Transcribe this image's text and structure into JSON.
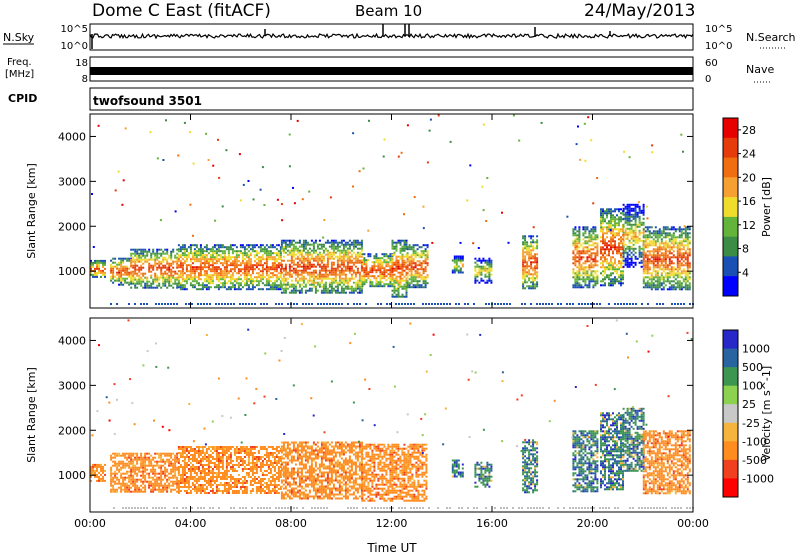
{
  "header": {
    "station": "Dome C East (fitACF)",
    "beam": "Beam 10",
    "date": "24/May/2013"
  },
  "strips": {
    "nsky": {
      "label": "N.Sky",
      "ticks": [
        "10^5",
        "10^0"
      ],
      "right_ticks": [
        "10^5",
        "10^0"
      ],
      "right_label": "N.Search"
    },
    "freq": {
      "label_top": "Freq.",
      "label_bottom": "[MHz]",
      "ticks": [
        "18",
        "8"
      ],
      "right_ticks": [
        "60",
        "0"
      ],
      "right_label": "Nave"
    },
    "cpid": {
      "label": "CPID",
      "value": "twofsound 3501"
    }
  },
  "colors": {
    "power": [
      "#0000ff",
      "#1a50b4",
      "#3c8c46",
      "#64b43c",
      "#f0dc2a",
      "#f5a030",
      "#f06e10",
      "#e63c0c",
      "#e60000"
    ],
    "velocity": [
      "#ff0000",
      "#f04020",
      "#ff8c1e",
      "#f5b43c",
      "#c8c8c8",
      "#8cd250",
      "#3c9650",
      "#2a64a0",
      "#2828c8"
    ],
    "ground": "#bebebe"
  },
  "chart_data": [
    {
      "type": "heatmap",
      "quantity": "Power",
      "xlabel": "",
      "ylabel": "Slant Range [km]",
      "xlim_hours": [
        0,
        24
      ],
      "ylim_km": [
        180,
        4500
      ],
      "x_ticks": [
        "00:00",
        "04:00",
        "08:00",
        "12:00",
        "16:00",
        "20:00",
        "00:00"
      ],
      "y_ticks": [
        1000,
        2000,
        3000,
        4000
      ],
      "colorbar": {
        "label": "Power [dB]",
        "ticks": [
          4,
          8,
          12,
          16,
          20,
          24,
          28
        ],
        "range": [
          0,
          30
        ]
      },
      "scatter_regions": [
        {
          "t_start": 0.0,
          "t_end": 0.6,
          "r_low": 870,
          "r_high": 1250,
          "level": "high"
        },
        {
          "t_start": 0.8,
          "t_end": 1.6,
          "r_low": 720,
          "r_high": 1300,
          "level": "high"
        },
        {
          "t_start": 1.6,
          "t_end": 3.5,
          "r_low": 650,
          "r_high": 1500,
          "level": "high"
        },
        {
          "t_start": 3.5,
          "t_end": 7.6,
          "r_low": 600,
          "r_high": 1600,
          "level": "high"
        },
        {
          "t_start": 7.6,
          "t_end": 10.8,
          "r_low": 500,
          "r_high": 1700,
          "level": "high"
        },
        {
          "t_start": 10.8,
          "t_end": 12.0,
          "r_low": 650,
          "r_high": 1400,
          "level": "high"
        },
        {
          "t_start": 12.0,
          "t_end": 12.6,
          "r_low": 450,
          "r_high": 1700,
          "level": "high"
        },
        {
          "t_start": 12.6,
          "t_end": 13.4,
          "r_low": 650,
          "r_high": 1600,
          "level": "high"
        },
        {
          "t_start": 14.4,
          "t_end": 14.8,
          "r_low": 950,
          "r_high": 1350,
          "level": "medium"
        },
        {
          "t_start": 15.3,
          "t_end": 16.0,
          "r_low": 750,
          "r_high": 1300,
          "level": "medium"
        },
        {
          "t_start": 17.2,
          "t_end": 17.8,
          "r_low": 600,
          "r_high": 1800,
          "level": "high"
        },
        {
          "t_start": 19.2,
          "t_end": 20.2,
          "r_low": 650,
          "r_high": 2000,
          "level": "high"
        },
        {
          "t_start": 20.3,
          "t_end": 21.2,
          "r_low": 700,
          "r_high": 2400,
          "level": "high"
        },
        {
          "t_start": 21.2,
          "t_end": 22.0,
          "r_low": 1100,
          "r_high": 2500,
          "level": "medium"
        },
        {
          "t_start": 22.0,
          "t_end": 23.9,
          "r_low": 600,
          "r_high": 2000,
          "level": "high"
        }
      ]
    },
    {
      "type": "heatmap",
      "quantity": "Velocity",
      "xlabel": "Time UT",
      "ylabel": "Slant Range [km]",
      "xlim_hours": [
        0,
        24
      ],
      "ylim_km": [
        180,
        4500
      ],
      "x_ticks": [
        "00:00",
        "04:00",
        "08:00",
        "12:00",
        "16:00",
        "20:00",
        "00:00"
      ],
      "y_ticks": [
        1000,
        2000,
        3000,
        4000
      ],
      "colorbar": {
        "label": "Velocity [m s^-1]",
        "ticks": [
          1000,
          500,
          100,
          25,
          -25,
          -100,
          -500,
          -1000
        ]
      },
      "scatter_regions": [
        {
          "t_start": 0.0,
          "t_end": 0.6,
          "r_low": 870,
          "r_high": 1250,
          "level": "away"
        },
        {
          "t_start": 0.8,
          "t_end": 3.5,
          "r_low": 650,
          "r_high": 1500,
          "level": "away"
        },
        {
          "t_start": 3.5,
          "t_end": 7.6,
          "r_low": 600,
          "r_high": 1650,
          "level": "away"
        },
        {
          "t_start": 7.6,
          "t_end": 10.8,
          "r_low": 500,
          "r_high": 1750,
          "level": "away"
        },
        {
          "t_start": 10.8,
          "t_end": 13.4,
          "r_low": 450,
          "r_high": 1700,
          "level": "away"
        },
        {
          "t_start": 14.4,
          "t_end": 14.8,
          "r_low": 950,
          "r_high": 1350,
          "level": "toward"
        },
        {
          "t_start": 15.3,
          "t_end": 16.0,
          "r_low": 750,
          "r_high": 1300,
          "level": "toward"
        },
        {
          "t_start": 17.2,
          "t_end": 17.8,
          "r_low": 600,
          "r_high": 1800,
          "level": "toward"
        },
        {
          "t_start": 19.2,
          "t_end": 20.2,
          "r_low": 650,
          "r_high": 2000,
          "level": "toward"
        },
        {
          "t_start": 20.3,
          "t_end": 21.2,
          "r_low": 700,
          "r_high": 2400,
          "level": "toward"
        },
        {
          "t_start": 21.2,
          "t_end": 22.0,
          "r_low": 1100,
          "r_high": 2500,
          "level": "toward"
        },
        {
          "t_start": 22.0,
          "t_end": 23.9,
          "r_low": 600,
          "r_high": 2000,
          "level": "away"
        }
      ]
    }
  ]
}
